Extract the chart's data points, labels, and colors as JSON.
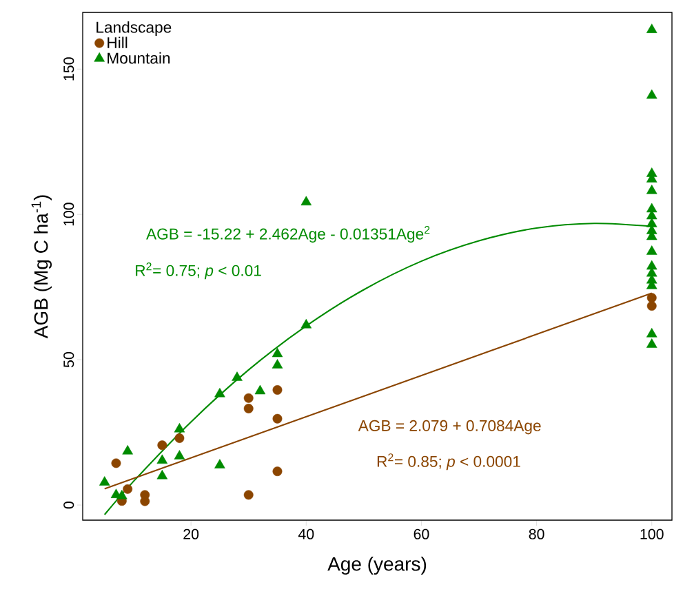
{
  "chart_data": {
    "type": "scatter",
    "xlabel": "Age (years)",
    "ylabel": "AGB (Mg C ha$^{-1}$)",
    "legend_title": "Landscape",
    "legend": "top left",
    "xlim": [
      1.2,
      103.5
    ],
    "ylim": [
      -5.2,
      169.5
    ],
    "xticks": [
      20,
      40,
      60,
      80,
      100
    ],
    "yticks": [
      0,
      50,
      100,
      150
    ],
    "series": [
      {
        "name": "Hill",
        "color": "#8b4500",
        "marker": "circle",
        "x": [
          7,
          8,
          9,
          12,
          12,
          15,
          18,
          30,
          30,
          35,
          35,
          35,
          30,
          100,
          100
        ],
        "values": [
          14.4,
          1.4,
          5.5,
          3.5,
          1.3,
          20.6,
          23,
          36.8,
          33.2,
          39.6,
          29.7,
          11.6,
          3.5,
          71.3,
          68.5
        ]
      },
      {
        "name": "Mountain",
        "color": "#008b00",
        "marker": "triangle",
        "x": [
          5,
          7,
          8,
          9,
          15,
          15,
          18,
          18,
          25,
          25,
          28,
          32,
          35,
          35,
          40,
          40,
          100,
          100,
          100,
          100,
          100,
          100,
          100,
          100,
          100,
          100,
          100,
          100,
          100,
          100,
          100,
          100,
          100
        ],
        "values": [
          7.8,
          3.5,
          3.1,
          18.5,
          15.3,
          10,
          26.1,
          16.8,
          38.2,
          13.7,
          43.8,
          39.2,
          52,
          48.1,
          104.2,
          61.9,
          163.5,
          140.9,
          114,
          112.1,
          108.1,
          101.8,
          99.4,
          96.7,
          94.3,
          92.3,
          87.2,
          82.1,
          79.7,
          77.3,
          75.4,
          58.8,
          55.2
        ]
      },
      {
        "type": "line",
        "color": "#008b00",
        "marker": "none",
        "x": [
          5,
          10,
          20,
          30,
          40,
          50,
          60,
          70,
          80,
          90,
          100
        ],
        "values": [
          -3.3,
          8.1,
          28.6,
          46.5,
          61.6,
          74.1,
          83.9,
          90.9,
          95.3,
          96.9,
          95.9
        ]
      },
      {
        "type": "line",
        "color": "#8b4500",
        "marker": "none",
        "x": [
          5,
          100
        ],
        "values": [
          5.6,
          72.9
        ]
      }
    ],
    "annotations": [
      "AGB =  -15.22  +  2.462Age  - 0.01351Age$^{2}$",
      "R$^{2}$= 0.75; *p* < 0.01",
      "AGB =  2.079 + 0.7084Age",
      "R$^{2}$= 0.85; *p* < 0.0001"
    ]
  }
}
